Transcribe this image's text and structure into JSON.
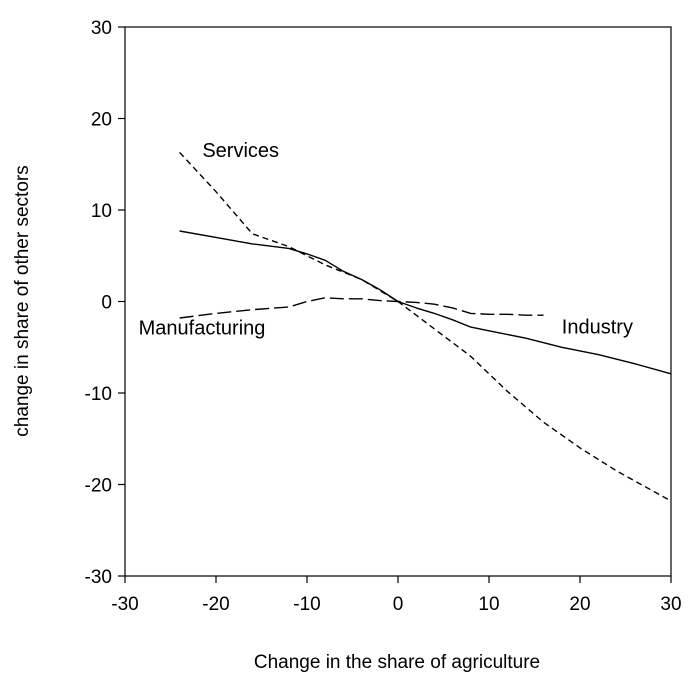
{
  "chart_data": {
    "type": "line",
    "xlabel": "Change in the share of agriculture",
    "ylabel": "change in share of other sectors",
    "xlim": [
      -30,
      30
    ],
    "ylim": [
      -30,
      30
    ],
    "x_ticks": [
      -30,
      -20,
      -10,
      0,
      10,
      20,
      30
    ],
    "y_ticks": [
      -30,
      -20,
      -10,
      0,
      10,
      20,
      30
    ],
    "x_tick_labels": [
      "-30",
      "-20",
      "-10",
      "0",
      "10",
      "20",
      "30"
    ],
    "y_tick_labels": [
      "-30",
      "-20",
      "-10",
      "0",
      "10",
      "20",
      "30"
    ],
    "grid": false,
    "legend": "none",
    "series": [
      {
        "name": "Services",
        "line_style": "short-dash",
        "color": "#000000",
        "x": [
          -24,
          -20,
          -16,
          -12,
          -8,
          -4,
          0,
          4,
          8,
          12,
          16,
          20,
          24,
          30
        ],
        "y": [
          16.3,
          12,
          7.4,
          6,
          4,
          2.4,
          0,
          -3,
          -6,
          -9.8,
          -13.2,
          -16,
          -18.5,
          -21.8
        ]
      },
      {
        "name": "Industry",
        "line_style": "solid",
        "color": "#000000",
        "x": [
          -24,
          -20,
          -16,
          -12,
          -10,
          -8,
          -6,
          -4,
          -2,
          0,
          2,
          4,
          6,
          8,
          10,
          14,
          18,
          22,
          26,
          30
        ],
        "y": [
          7.7,
          7,
          6.3,
          5.8,
          5.2,
          4.5,
          3.3,
          2.4,
          1.3,
          0,
          -0.7,
          -1.3,
          -2,
          -2.8,
          -3.2,
          -4,
          -5,
          -5.8,
          -6.8,
          -7.9
        ]
      },
      {
        "name": "Manufacturing",
        "line_style": "long-dash",
        "color": "#000000",
        "x": [
          -24,
          -20,
          -16,
          -12,
          -10,
          -8,
          -6,
          -4,
          -2,
          0,
          2,
          4,
          6,
          8,
          10,
          12,
          14,
          16
        ],
        "y": [
          -1.8,
          -1.3,
          -0.9,
          -0.6,
          0,
          0.4,
          0.3,
          0.3,
          0.1,
          0,
          -0.1,
          -0.3,
          -0.7,
          -1.3,
          -1.4,
          -1.4,
          -1.5,
          -1.5
        ]
      }
    ],
    "annotations": [
      {
        "text": "Services",
        "x": -21.5,
        "y": 15.8
      },
      {
        "text": "Industry",
        "x": 18,
        "y": -3.5
      },
      {
        "text": "Manufacturing",
        "x": -28.5,
        "y": -3.6
      }
    ]
  }
}
